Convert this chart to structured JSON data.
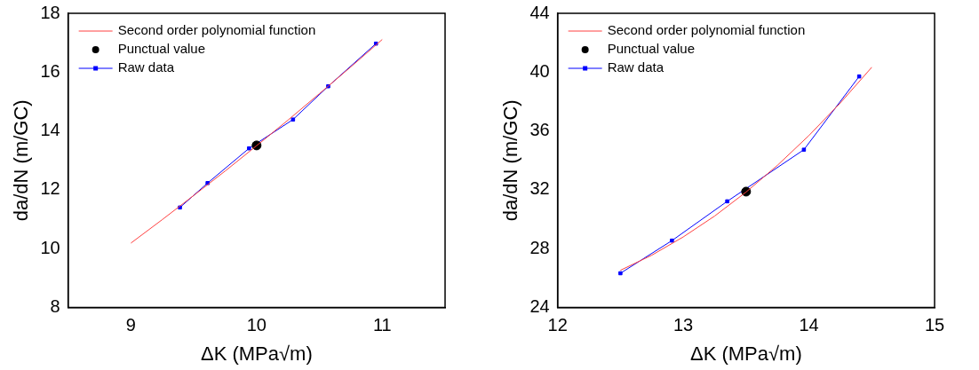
{
  "chart_data": [
    {
      "type": "line",
      "xlabel": "ΔK (MPa√m)",
      "ylabel": "da/dN (m/GC)",
      "xlim": [
        8.5,
        11.5
      ],
      "xticks": [
        9,
        10,
        11
      ],
      "ylim": [
        8,
        18
      ],
      "yticks": [
        8,
        10,
        12,
        14,
        16,
        18
      ],
      "grid": false,
      "legend": "top left",
      "series": [
        {
          "name": "Second order polynomial function",
          "type": "line",
          "marker": "none",
          "color": "#ff4040",
          "x": [
            9,
            9.25,
            9.5,
            9.75,
            10,
            10.25,
            10.5,
            10.75,
            11
          ],
          "values": [
            10.19,
            10.99,
            11.81,
            12.64,
            13.5,
            14.37,
            15.27,
            16.18,
            17.11
          ]
        },
        {
          "name": "Punctual value",
          "type": "scatter",
          "marker": "circle",
          "color": "#000000",
          "x": [
            10.0
          ],
          "values": [
            13.51
          ]
        },
        {
          "name": "Raw data",
          "type": "line",
          "marker": "square",
          "color": "#0000ff",
          "x": [
            9.39,
            9.61,
            9.94,
            10.29,
            10.57,
            10.95
          ],
          "values": [
            11.4,
            12.23,
            13.41,
            14.39,
            15.52,
            16.97
          ]
        }
      ]
    },
    {
      "type": "line",
      "xlabel": "ΔK (MPa√m)",
      "ylabel": "da/dN (m/GC)",
      "xlim": [
        12,
        15
      ],
      "xticks": [
        12,
        13,
        14,
        15
      ],
      "ylim": [
        24,
        44
      ],
      "yticks": [
        24,
        28,
        32,
        36,
        40,
        44
      ],
      "grid": false,
      "legend": "top left",
      "series": [
        {
          "name": "Second order polynomial function",
          "type": "line",
          "marker": "none",
          "color": "#ff4040",
          "x": [
            12.5,
            12.75,
            13,
            13.25,
            13.5,
            13.75,
            14,
            14.25,
            14.5
          ],
          "values": [
            26.53,
            27.56,
            28.8,
            30.22,
            31.85,
            33.67,
            35.69,
            37.91,
            40.33
          ]
        },
        {
          "name": "Punctual value",
          "type": "scatter",
          "marker": "circle",
          "color": "#000000",
          "x": [
            13.5
          ],
          "values": [
            31.88
          ]
        },
        {
          "name": "Raw data",
          "type": "line",
          "marker": "square",
          "color": "#0000ff",
          "x": [
            12.5,
            12.91,
            13.35,
            13.96,
            14.4
          ],
          "values": [
            26.33,
            28.55,
            31.22,
            34.73,
            39.71
          ]
        }
      ]
    }
  ]
}
